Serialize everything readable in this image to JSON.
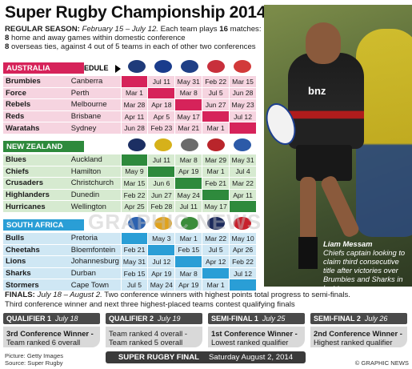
{
  "title": "Super Rugby Championship 2014",
  "intro": {
    "line1_label": "REGULAR SEASON:",
    "line1_dates": "February 15 – July 12.",
    "line1_rest": "Each team plays",
    "line1_matches": "16",
    "line1_end": "matches:",
    "line2_num": "8",
    "line2_text": "home and away games within domestic conference",
    "line3_num": "8",
    "line3_text": "overseas ties, against 4 out of 5 teams in each of other two conferences"
  },
  "schedule_label": "SCHEDULE",
  "conferences": [
    {
      "name": "AUSTRALIA",
      "color": "#d6235a",
      "row_bg": "#f6d4e0",
      "logo_colors": [
        "#1f3b7a",
        "#1a3c8c",
        "#1f3f86",
        "#c8303c",
        "#d23a3a"
      ],
      "teams": [
        {
          "team": "Brumbies",
          "city": "Canberra",
          "cells": [
            "",
            "Jul 11",
            "May 31",
            "Feb 22",
            "Mar 15"
          ]
        },
        {
          "team": "Force",
          "city": "Perth",
          "cells": [
            "Mar 1",
            "",
            "Mar 8",
            "Jul 5",
            "Jun 28"
          ]
        },
        {
          "team": "Rebels",
          "city": "Melbourne",
          "cells": [
            "Mar 28",
            "Apr 18",
            "",
            "Jun 27",
            "May 23"
          ]
        },
        {
          "team": "Reds",
          "city": "Brisbane",
          "cells": [
            "Apr 11",
            "Apr 5",
            "May 17",
            "",
            "Jul 12"
          ]
        },
        {
          "team": "Waratahs",
          "city": "Sydney",
          "cells": [
            "Jun 28",
            "Feb 23",
            "Mar 21",
            "Mar 1",
            ""
          ]
        }
      ]
    },
    {
      "name": "NEW ZEALAND",
      "color": "#2e8a3c",
      "row_bg": "#d6ead0",
      "logo_colors": [
        "#1c2f63",
        "#d6b11a",
        "#6b6b6b",
        "#b9252b",
        "#2c5aa8"
      ],
      "teams": [
        {
          "team": "Blues",
          "city": "Auckland",
          "cells": [
            "",
            "Jul 11",
            "Mar 8",
            "Mar 29",
            "May 31"
          ]
        },
        {
          "team": "Chiefs",
          "city": "Hamilton",
          "cells": [
            "May 9",
            "",
            "Apr 19",
            "Mar 1",
            "Jul 4"
          ]
        },
        {
          "team": "Crusaders",
          "city": "Christchurch",
          "cells": [
            "Mar 15",
            "Jun 6",
            "",
            "Feb 21",
            "Mar 22"
          ]
        },
        {
          "team": "Highlanders",
          "city": "Dunedin",
          "cells": [
            "Feb 22",
            "Jun 27",
            "May 24",
            "",
            "Apr 11"
          ]
        },
        {
          "team": "Hurricanes",
          "city": "Wellington",
          "cells": [
            "Apr 25",
            "Feb 28",
            "Jul 11",
            "May 17",
            ""
          ]
        }
      ]
    },
    {
      "name": "SOUTH AFRICA",
      "color": "#2a9ed6",
      "row_bg": "#cfe7f4",
      "logo_colors": [
        "#2c62b0",
        "#e0a21c",
        "#3b8c3a",
        "#1c2a5c",
        "#c8202c"
      ],
      "teams": [
        {
          "team": "Bulls",
          "city": "Pretoria",
          "cells": [
            "",
            "May 3",
            "Mar 1",
            "Mar 22",
            "May 10"
          ]
        },
        {
          "team": "Cheetahs",
          "city": "Bloemfontein",
          "cells": [
            "Feb 21",
            "",
            "Feb 15",
            "Jul 5",
            "Apr 26"
          ]
        },
        {
          "team": "Lions",
          "city": "Johannesburg",
          "cells": [
            "May 31",
            "Jul 12",
            "",
            "Apr 12",
            "Feb 22"
          ]
        },
        {
          "team": "Sharks",
          "city": "Durban",
          "cells": [
            "Feb 15",
            "Apr 19",
            "Mar 8",
            "",
            "Jul 12"
          ]
        },
        {
          "team": "Stormers",
          "city": "Cape Town",
          "cells": [
            "Jul 5",
            "May 24",
            "Apr 19",
            "Mar 1",
            ""
          ]
        }
      ]
    }
  ],
  "player": {
    "shirt_sponsor": "bnz",
    "name": "Liam Messam",
    "description": "Chiefs captain looking to claim third consecutive title after victories over Brumbies and Sharks in last two years"
  },
  "watermark": "GRAPHIC NEWS",
  "finals": {
    "label": "FINALS:",
    "dates": "July 18 – August 2.",
    "line1_rest": "Two conference winners with highest points total progress to semi-finals.",
    "line2": "Third conference winner and next three highest-placed teams contest qualifying finals"
  },
  "qualifiers": [
    {
      "title": "QUALIFIER 1",
      "date": "July 18",
      "line1": "3rd Conference Winner -",
      "line2": "Team ranked 6 overall",
      "bold1": true
    },
    {
      "title": "QUALIFIER 2",
      "date": "July 19",
      "line1": "Team ranked 4 overall -",
      "line2": "Team ranked 5 overall",
      "bold1": false
    },
    {
      "title": "SEMI-FINAL 1",
      "date": "July 25",
      "line1": "1st Conference Winner -",
      "line2": "Lowest ranked qualifier",
      "bold1": true
    },
    {
      "title": "SEMI-FINAL 2",
      "date": "July 26",
      "line1": "2nd Conference Winner -",
      "line2": "Highest ranked qualifier",
      "bold1": true
    }
  ],
  "final_bar": {
    "label": "SUPER RUGBY FINAL",
    "date": "Saturday August 2, 2014"
  },
  "source": {
    "picture": "Picture: Getty Images",
    "source": "Source: Super Rugby"
  },
  "copyright": "© GRAPHIC NEWS"
}
